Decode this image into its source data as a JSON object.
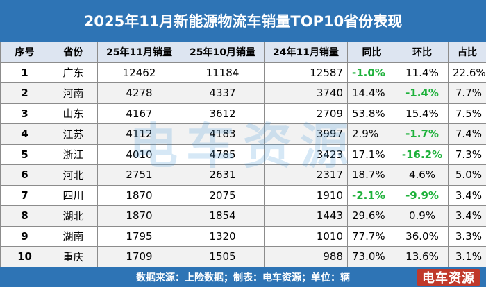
{
  "title": "2025年11月新能源物流车销量TOP10省份表现",
  "columns": [
    "序号",
    "省份",
    "25年11月销量",
    "25年10月销量",
    "24年11月销量",
    "同比",
    "环比",
    "占比"
  ],
  "rows": [
    {
      "rank": "1",
      "province": "广东",
      "nov25": "12462",
      "oct25": "11184",
      "nov24": "12587",
      "yoy": "-1.0%",
      "mom": "11.4%",
      "share": "22.6%"
    },
    {
      "rank": "2",
      "province": "河南",
      "nov25": "4278",
      "oct25": "4337",
      "nov24": "3740",
      "yoy": "14.4%",
      "mom": "-1.4%",
      "share": "7.7%"
    },
    {
      "rank": "3",
      "province": "山东",
      "nov25": "4167",
      "oct25": "3612",
      "nov24": "2709",
      "yoy": "53.8%",
      "mom": "15.4%",
      "share": "7.5%"
    },
    {
      "rank": "4",
      "province": "江苏",
      "nov25": "4112",
      "oct25": "4183",
      "nov24": "3997",
      "yoy": "2.9%",
      "mom": "-1.7%",
      "share": "7.4%"
    },
    {
      "rank": "5",
      "province": "浙江",
      "nov25": "4010",
      "oct25": "4785",
      "nov24": "3423",
      "yoy": "17.1%",
      "mom": "-16.2%",
      "share": "7.3%"
    },
    {
      "rank": "6",
      "province": "河北",
      "nov25": "2751",
      "oct25": "2631",
      "nov24": "2317",
      "yoy": "18.7%",
      "mom": "4.6%",
      "share": "5.0%"
    },
    {
      "rank": "7",
      "province": "四川",
      "nov25": "1870",
      "oct25": "2075",
      "nov24": "1910",
      "yoy": "-2.1%",
      "mom": "-9.9%",
      "share": "3.4%"
    },
    {
      "rank": "8",
      "province": "湖北",
      "nov25": "1870",
      "oct25": "1854",
      "nov24": "1443",
      "yoy": "29.6%",
      "mom": "0.9%",
      "share": "3.4%"
    },
    {
      "rank": "9",
      "province": "湖南",
      "nov25": "1795",
      "oct25": "1320",
      "nov24": "1010",
      "yoy": "77.7%",
      "mom": "36.0%",
      "share": "3.3%"
    },
    {
      "rank": "10",
      "province": "重庆",
      "nov25": "1709",
      "oct25": "1505",
      "nov24": "988",
      "yoy": "73.0%",
      "mom": "13.6%",
      "share": "3.1%"
    }
  ],
  "footer": "数据来源：上险数据；制表：电车资源；单位：辆",
  "watermark": "电车资源",
  "logo": "电车资源",
  "colors": {
    "header_bar": "#2e74b5",
    "negative": "#1db13a",
    "header_row": "#dde5f1"
  }
}
